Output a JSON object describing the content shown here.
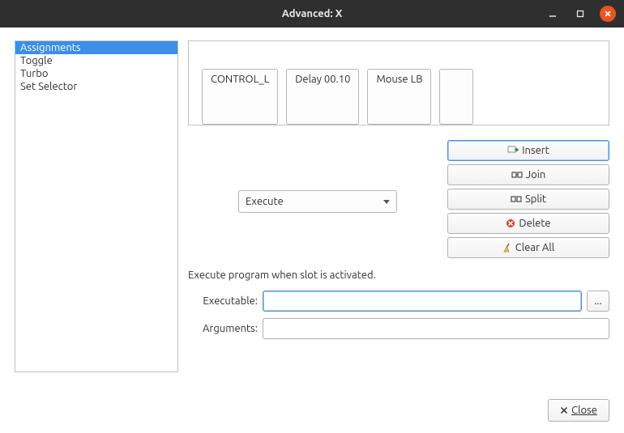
{
  "window": {
    "title": "Advanced: X",
    "close_label": "Close"
  },
  "sidebar": {
    "items": [
      {
        "label": "Assignments",
        "selected": true
      },
      {
        "label": "Toggle",
        "selected": false
      },
      {
        "label": "Turbo",
        "selected": false
      },
      {
        "label": "Set Selector",
        "selected": false
      }
    ]
  },
  "slots": {
    "chips": [
      {
        "label": "CONTROL_L"
      },
      {
        "label": "Delay 00.10"
      },
      {
        "label": "Mouse LB"
      },
      {
        "label": ""
      }
    ]
  },
  "action": {
    "combo_value": "Execute",
    "buttons": {
      "insert": "Insert",
      "join": "Join",
      "split": "Split",
      "delete": "Delete",
      "clear_all": "Clear All"
    }
  },
  "description": "Execute program when slot is activated.",
  "form": {
    "executable_label": "Executable:",
    "executable_value": "",
    "browse_label": "...",
    "arguments_label": "Arguments:",
    "arguments_value": ""
  },
  "colors": {
    "titlebar_bg": "#2f2f2f",
    "close_bg": "#e95420",
    "selection_bg": "#3c8ee6",
    "border": "#b5b5b5",
    "focus_border": "#4a90d9"
  }
}
